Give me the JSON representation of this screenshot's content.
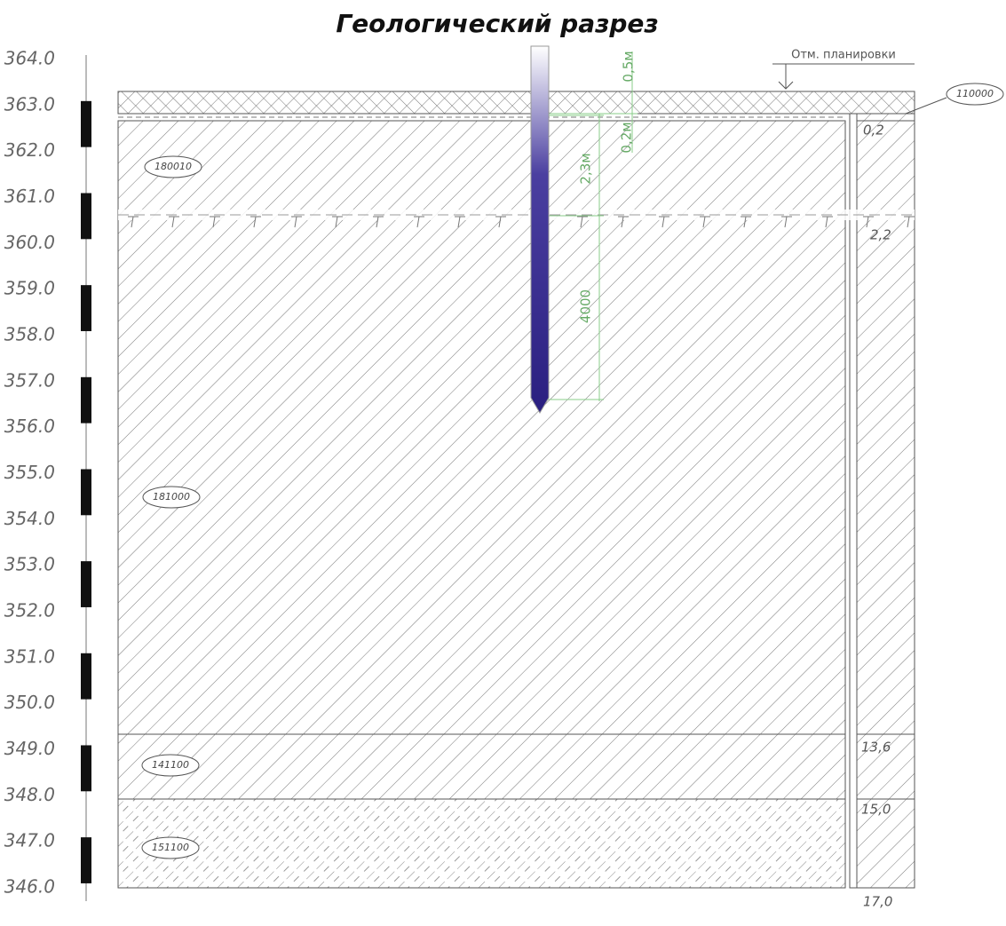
{
  "title": "Геологический разрез",
  "scale": {
    "labels": [
      "364.0",
      "363.0",
      "362.0",
      "361.0",
      "360.0",
      "359.0",
      "358.0",
      "357.0",
      "356.0",
      "355.0",
      "354.0",
      "353.0",
      "352.0",
      "351.0",
      "350.0",
      "349.0",
      "348.0",
      "347.0",
      "346.0"
    ]
  },
  "elevation_mark": {
    "label": "Отм. планировки"
  },
  "layers": [
    {
      "code": "110000"
    },
    {
      "code": "180010"
    },
    {
      "code": "181000"
    },
    {
      "code": "141100"
    },
    {
      "code": "151100"
    }
  ],
  "depths": [
    "0,2",
    "2,2",
    "13,6",
    "15,0",
    "17,0"
  ],
  "dimensions": [
    "0,5м",
    "0,2м",
    "2,3м",
    "4000"
  ]
}
